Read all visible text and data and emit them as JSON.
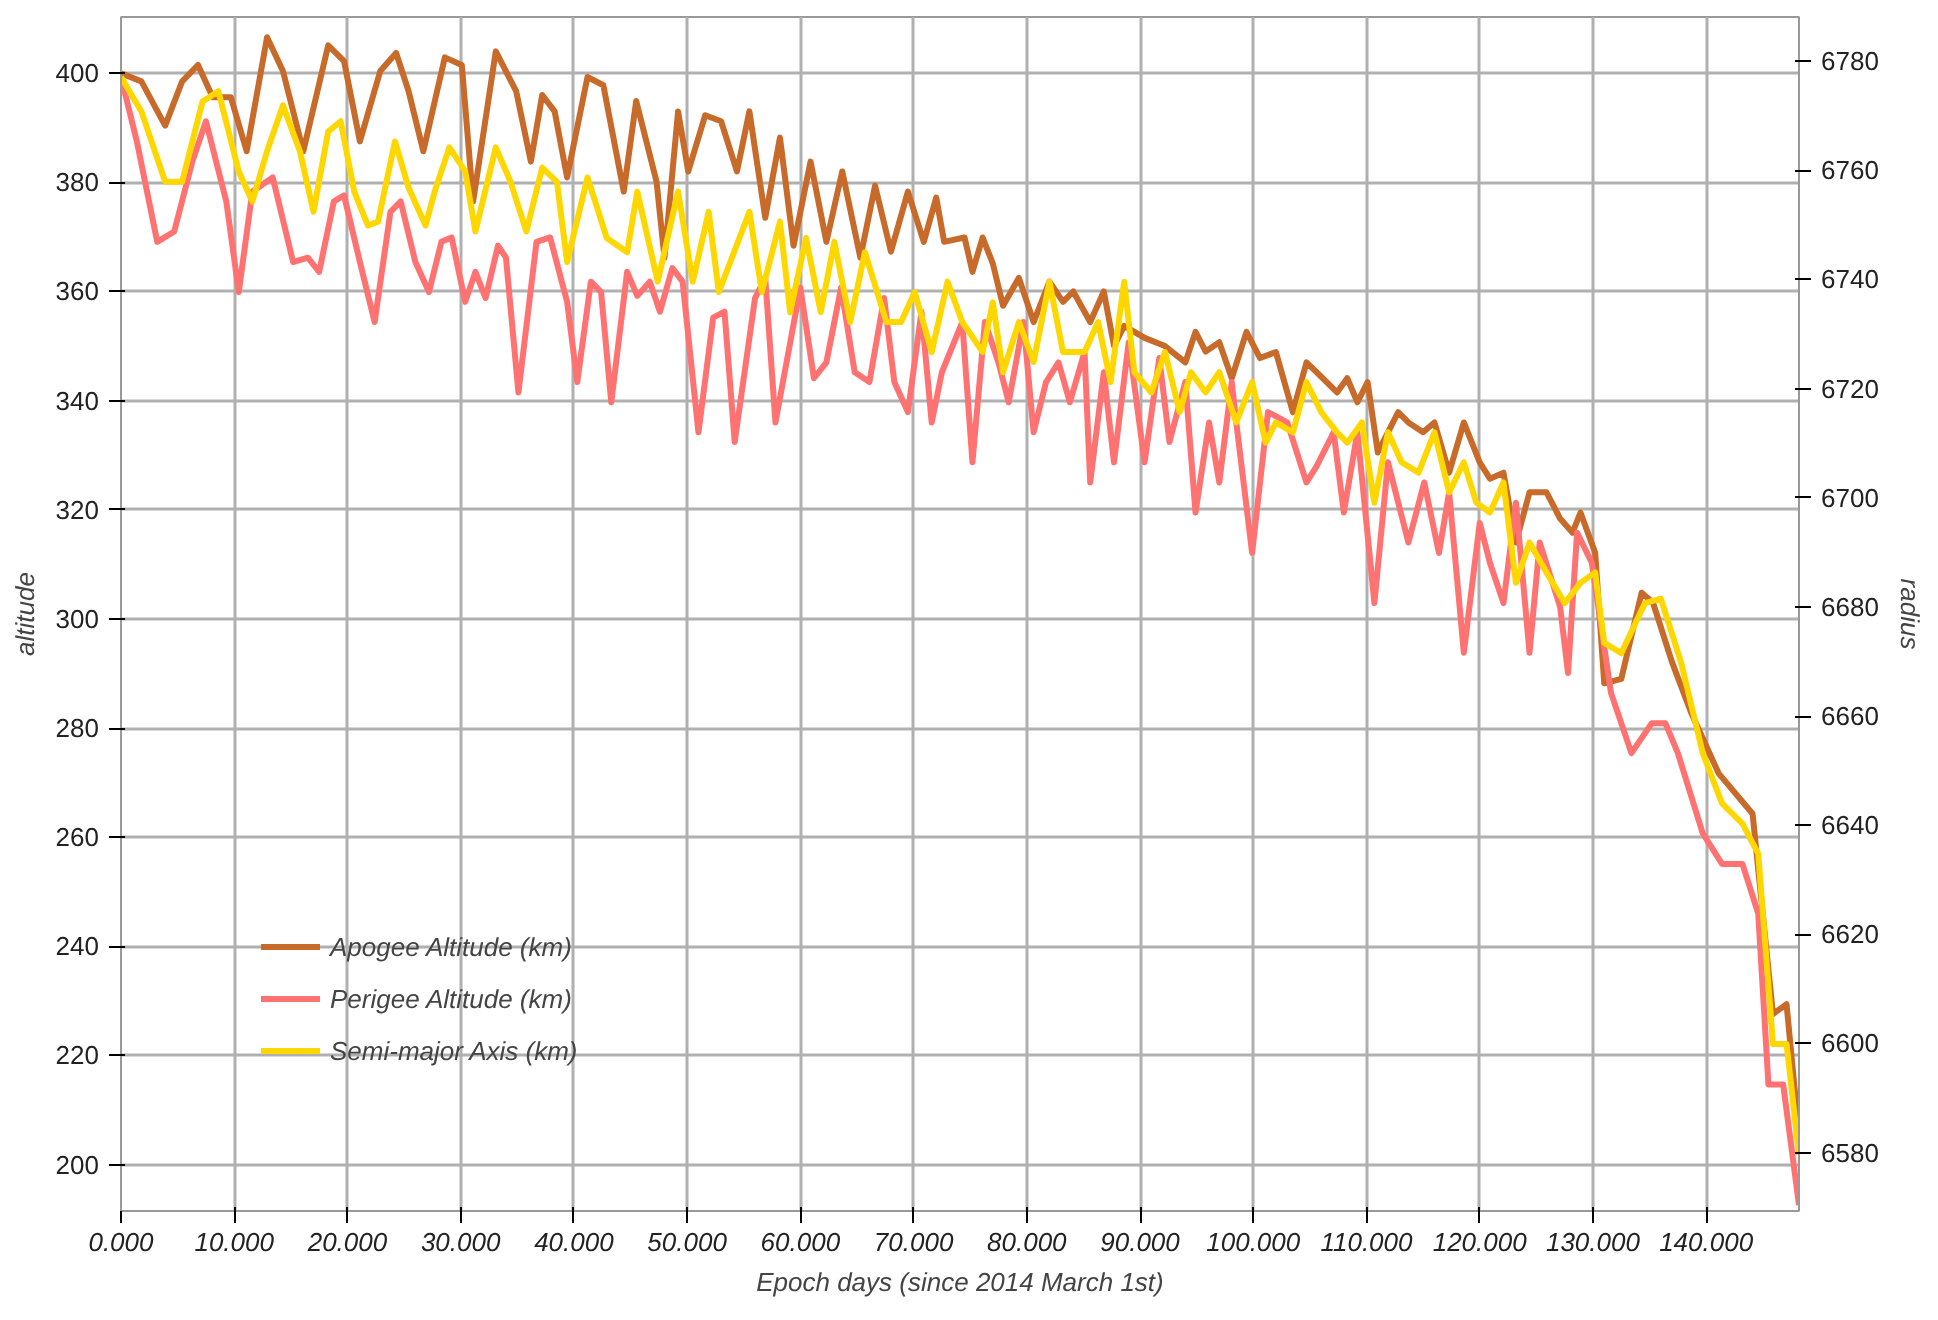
{
  "chart_data": {
    "type": "line",
    "xlabel": "Epoch days (since 2014 March 1st)",
    "ylabel": "altitude",
    "y2label": "radius",
    "xlim": [
      0,
      148.2
    ],
    "ylim": [
      191.5,
      410.3
    ],
    "y2lim": [
      6569.3,
      6788.1
    ],
    "xticks": [
      {
        "value": 0,
        "label": "0.000"
      },
      {
        "value": 10,
        "label": "10.000"
      },
      {
        "value": 20,
        "label": "20.000"
      },
      {
        "value": 30,
        "label": "30.000"
      },
      {
        "value": 40,
        "label": "40.000"
      },
      {
        "value": 50,
        "label": "50.000"
      },
      {
        "value": 60,
        "label": "60.000"
      },
      {
        "value": 70,
        "label": "70.000"
      },
      {
        "value": 80,
        "label": "80.000"
      },
      {
        "value": 90,
        "label": "90.000"
      },
      {
        "value": 100,
        "label": "100.000"
      },
      {
        "value": 110,
        "label": "110.000"
      },
      {
        "value": 120,
        "label": "120.000"
      },
      {
        "value": 130,
        "label": "130.000"
      },
      {
        "value": 140,
        "label": "140.000"
      }
    ],
    "yticks": [
      200,
      220,
      240,
      260,
      280,
      300,
      320,
      340,
      360,
      380,
      400
    ],
    "y2ticks": [
      6580,
      6600,
      6620,
      6640,
      6660,
      6680,
      6700,
      6720,
      6740,
      6760,
      6780
    ],
    "grid": true,
    "legend": "bottom left",
    "line_style": "solid",
    "series": [
      {
        "name": "Apogee Altitude (km)",
        "color": "#c86a2a",
        "x": [
          0,
          1.8,
          3.9,
          5.4,
          6.8,
          8.1,
          9.7,
          11.1,
          12.9,
          14.3,
          16.1,
          18.3,
          19.7,
          21.1,
          22.9,
          24.3,
          25.4,
          26.7,
          28.6,
          30.1,
          31.1,
          33.1,
          34.9,
          36.2,
          37.2,
          38.3,
          39.4,
          41.2,
          42.6,
          44.4,
          45.5,
          47.3,
          48,
          49.2,
          50.1,
          51.6,
          53,
          54.4,
          55.5,
          56.9,
          58.2,
          59.4,
          60.9,
          62.3,
          63.7,
          65.3,
          66.6,
          68,
          69.5,
          70.9,
          72,
          72.7,
          74.5,
          75.2,
          76.1,
          77,
          77.9,
          79.3,
          80.6,
          82,
          83.2,
          84.1,
          85.6,
          86.8,
          87.7,
          88.6,
          90.4,
          92.2,
          94,
          94.9,
          95.8,
          97,
          98.1,
          99.4,
          100.6,
          102,
          103.5,
          104.7,
          105.6,
          107.4,
          108.3,
          109.2,
          110.1,
          111,
          112.8,
          113.7,
          115,
          116,
          117.3,
          118.6,
          120,
          120.9,
          122.1,
          123.2,
          124.4,
          125.9,
          127.1,
          128.2,
          128.9,
          130.2,
          131,
          132.5,
          134.3,
          135.3,
          137,
          138.7,
          141.1,
          144.1,
          145.9,
          147.1,
          148.2
        ],
        "values": [
          400,
          398.5,
          390.4,
          398.5,
          401.5,
          395.6,
          395.6,
          385.7,
          406.6,
          400.4,
          385.7,
          405.1,
          402.2,
          387.5,
          400.4,
          403.7,
          396.7,
          385.7,
          402.9,
          401.5,
          376.5,
          404,
          396.7,
          383.8,
          396,
          393,
          380.9,
          399.3,
          397.8,
          378.3,
          394.9,
          380.1,
          366.2,
          393,
          382,
          392.3,
          391.2,
          382,
          393,
          373.5,
          388.2,
          368.4,
          383.8,
          369.1,
          382,
          366.2,
          379.4,
          367.3,
          378.3,
          369.1,
          377.2,
          369.1,
          369.9,
          363.6,
          369.9,
          365.1,
          357.4,
          362.5,
          354.4,
          361.8,
          358.1,
          360,
          354.4,
          360,
          350,
          353.7,
          351.5,
          350,
          347,
          352.6,
          349,
          350.7,
          344.1,
          352.6,
          347.8,
          348.9,
          337.9,
          347,
          345.2,
          341.5,
          344.1,
          339.7,
          343.4,
          330.5,
          337.9,
          336,
          334.2,
          336,
          326.8,
          336,
          328.7,
          325.7,
          326.8,
          314,
          323.2,
          323.2,
          318.4,
          315.8,
          319.5,
          312.1,
          288.2,
          289,
          304.8,
          303,
          292,
          282.7,
          271.7,
          264.3,
          227.6,
          229.4,
          205.5
        ]
      },
      {
        "name": "Perigee Altitude (km)",
        "color": "#ff7272",
        "x": [
          0,
          1.4,
          3.2,
          4.7,
          6.3,
          7.5,
          9.3,
          10.4,
          11.6,
          13.4,
          15.2,
          16.5,
          17.5,
          18.8,
          19.7,
          21.1,
          22.4,
          23.8,
          24.7,
          26,
          27.2,
          28.3,
          29.2,
          30.4,
          31.3,
          32.2,
          33.3,
          34,
          35.1,
          36.7,
          37.9,
          39.4,
          40.3,
          41.5,
          42.4,
          43.3,
          44.7,
          45.6,
          46.7,
          47.6,
          48.7,
          49.6,
          51,
          52.3,
          53.3,
          54.2,
          56,
          56.9,
          57.8,
          60,
          61.2,
          62.3,
          63.6,
          64.8,
          66.1,
          67.4,
          68.3,
          69.5,
          70.7,
          71.6,
          72.5,
          74.3,
          75.2,
          76.3,
          77.5,
          78.4,
          79.7,
          80.6,
          81.7,
          82.8,
          83.8,
          85.1,
          85.6,
          86.8,
          87.7,
          89,
          90.4,
          91.7,
          92.6,
          94,
          94.9,
          96.1,
          97,
          98.1,
          98.5,
          99.9,
          101.3,
          103,
          104.7,
          105.6,
          107.1,
          108,
          109.2,
          110.7,
          111.9,
          113.7,
          115.1,
          116.4,
          117.3,
          118.6,
          120,
          120.9,
          122.1,
          123.2,
          124.4,
          125.3,
          127.1,
          127.8,
          128.6,
          129.9,
          131.6,
          133.4,
          135.2,
          136.4,
          137.5,
          139.7,
          141.4,
          143.2,
          144.6,
          145.5,
          146.8,
          148.2
        ],
        "values": [
          399.3,
          387.5,
          369.1,
          371,
          383.8,
          391.2,
          376.5,
          359.9,
          378.3,
          380.9,
          365.4,
          366.2,
          363.6,
          376.5,
          377.6,
          365.4,
          354.4,
          374.6,
          376.5,
          365.4,
          359.9,
          369.1,
          369.9,
          358.1,
          363.6,
          358.8,
          368.4,
          366.2,
          341.5,
          369.1,
          369.9,
          358.1,
          343.4,
          361.8,
          359.9,
          339.7,
          363.6,
          359.2,
          361.8,
          356.3,
          364.3,
          361.8,
          334.2,
          355.2,
          356.3,
          332.4,
          358.8,
          362.5,
          336,
          360.7,
          344.1,
          347,
          360.7,
          345.2,
          343.4,
          358.8,
          343.4,
          337.9,
          356.3,
          336,
          345.2,
          354.4,
          328.7,
          354.4,
          347,
          339.7,
          354.4,
          334.2,
          343.4,
          347,
          339.7,
          348.9,
          325,
          345.2,
          328.7,
          350.7,
          328.7,
          347.8,
          332.4,
          343.4,
          319.5,
          336,
          325,
          343.4,
          336,
          312.1,
          337.9,
          336,
          325,
          328,
          334.2,
          319.5,
          334.2,
          302.9,
          328.7,
          314,
          325,
          312.1,
          323.2,
          293.8,
          317.6,
          310.3,
          302.9,
          321.3,
          293.8,
          314,
          302.2,
          290.1,
          315.8,
          310.3,
          286.4,
          275.4,
          280.9,
          280.9,
          275.4,
          260.7,
          255.1,
          255.1,
          246,
          214.7,
          214.7,
          192.6
        ]
      },
      {
        "name": "Semi-major Axis (km)",
        "color": "#ffd700",
        "axis": "y2",
        "x": [
          0,
          1.8,
          3.9,
          5.4,
          7.2,
          8.6,
          10.4,
          11.6,
          12.9,
          14.3,
          15.8,
          17,
          18.3,
          19.4,
          20.6,
          21.8,
          22.7,
          24.2,
          25.4,
          26.9,
          27.7,
          29,
          30.4,
          31.3,
          33.1,
          34.4,
          35.8,
          37.2,
          38.5,
          39.4,
          41.2,
          42.9,
          44.7,
          45.6,
          47.4,
          49.2,
          50.5,
          51.9,
          52.8,
          55.5,
          56.6,
          58.2,
          59.1,
          60.5,
          61.8,
          63,
          64.4,
          65.7,
          67.6,
          68.9,
          70.1,
          71.6,
          73,
          74.3,
          76.1,
          77,
          77.9,
          79.3,
          80.6,
          82,
          83.2,
          85.1,
          86.3,
          87.4,
          88.6,
          89.5,
          91,
          92.2,
          93.5,
          94.5,
          95.8,
          97,
          98.5,
          99.9,
          101.1,
          102,
          103.5,
          104.7,
          106,
          107.4,
          108.3,
          109.6,
          110.7,
          111.9,
          113.1,
          114.6,
          116,
          117.3,
          118.6,
          119.7,
          120.9,
          122.1,
          123.2,
          124.4,
          125.9,
          127.5,
          128.9,
          130.2,
          131,
          132.5,
          134.6,
          136,
          137.8,
          139.7,
          141.4,
          143.2,
          144.6,
          145.9,
          147.1,
          148.2
        ],
        "values": [
          6777.1,
          6770.8,
          6757.9,
          6757.9,
          6772.6,
          6774.5,
          6759.8,
          6754.3,
          6763.5,
          6771.9,
          6763.5,
          6752.4,
          6767.1,
          6769,
          6756.1,
          6749.9,
          6750.6,
          6765.3,
          6756.8,
          6749.9,
          6756.1,
          6764.2,
          6759.8,
          6748.8,
          6764.2,
          6757.9,
          6748.8,
          6760.5,
          6757.9,
          6743.2,
          6758.7,
          6747.6,
          6745,
          6756.1,
          6739.6,
          6756.1,
          6739.6,
          6752.4,
          6737.7,
          6752.4,
          6737.7,
          6750.6,
          6734,
          6747.6,
          6734,
          6746.9,
          6732.2,
          6745,
          6732.2,
          6732.2,
          6737.7,
          6726.7,
          6739.6,
          6732.2,
          6726.7,
          6735.8,
          6723,
          6732.2,
          6724.9,
          6739.6,
          6726.7,
          6726.7,
          6732.2,
          6721.2,
          6739.6,
          6723,
          6719.3,
          6726.7,
          6715.7,
          6723,
          6719.3,
          6723,
          6713.8,
          6721.2,
          6710.1,
          6713.8,
          6712,
          6721.2,
          6715.7,
          6712,
          6710.1,
          6713.8,
          6699.1,
          6712,
          6706.5,
          6704.6,
          6712,
          6701,
          6706.5,
          6699.1,
          6697.3,
          6702.8,
          6684.4,
          6691.8,
          6686.3,
          6680.7,
          6684.4,
          6686.3,
          6673.4,
          6671.5,
          6680.7,
          6681.5,
          6669.7,
          6653.2,
          6644,
          6640.3,
          6634.8,
          6599.9,
          6599.9,
          6579.6
        ]
      }
    ]
  }
}
